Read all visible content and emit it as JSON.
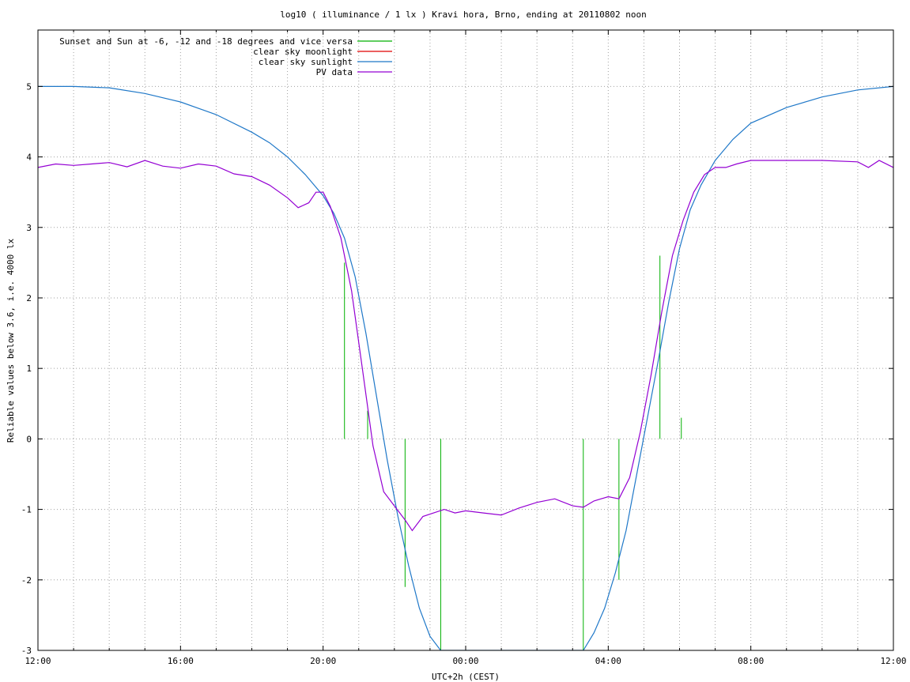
{
  "chart_data": {
    "type": "line",
    "title": "log10 ( illuminance / 1 lx ) Kravi hora, Brno, ending at 20110802 noon",
    "xlabel": "UTC+2h (CEST)",
    "ylabel": "Reliable values below 3.6, i.e. 4000 lx",
    "xlim": [
      0,
      24
    ],
    "ylim": [
      -3,
      5.8
    ],
    "x_ticks": [
      {
        "value": 0,
        "label": "12:00"
      },
      {
        "value": 4,
        "label": "16:00"
      },
      {
        "value": 8,
        "label": "20:00"
      },
      {
        "value": 12,
        "label": "00:00"
      },
      {
        "value": 16,
        "label": "04:00"
      },
      {
        "value": 20,
        "label": "08:00"
      },
      {
        "value": 24,
        "label": "12:00"
      }
    ],
    "y_ticks": [
      {
        "value": -3,
        "label": "-3"
      },
      {
        "value": -2,
        "label": "-2"
      },
      {
        "value": -1,
        "label": "-1"
      },
      {
        "value": 0,
        "label": "0"
      },
      {
        "value": 1,
        "label": "1"
      },
      {
        "value": 2,
        "label": "2"
      },
      {
        "value": 3,
        "label": "3"
      },
      {
        "value": 4,
        "label": "4"
      },
      {
        "value": 5,
        "label": "5"
      }
    ],
    "grid": true,
    "legend_position": "top-left",
    "series": [
      {
        "name": "Sunset and Sun at -6, -12 and -18 degrees and vice versa",
        "color": "#00b000",
        "style": "impulses",
        "x": [
          8.6,
          9.25,
          10.3,
          11.3,
          15.3,
          16.3,
          17.45,
          18.05
        ],
        "y": [
          2.5,
          0.4,
          -2.1,
          -3,
          -3,
          -2.0,
          2.6,
          0.3
        ]
      },
      {
        "name": "clear sky moonlight",
        "color": "#e00000",
        "style": "line",
        "x": [],
        "y": []
      },
      {
        "name": "clear sky sunlight",
        "color": "#1f78c8",
        "style": "line",
        "x": [
          0,
          1,
          2,
          3,
          4,
          5,
          6,
          6.5,
          7,
          7.5,
          8,
          8.3,
          8.6,
          8.9,
          9.2,
          9.5,
          9.8,
          10.1,
          10.4,
          10.7,
          11.0,
          11.3,
          15.3,
          15.6,
          15.9,
          16.2,
          16.5,
          16.8,
          17.1,
          17.4,
          17.7,
          18.0,
          18.3,
          18.6,
          19,
          19.5,
          20,
          21,
          22,
          23,
          24
        ],
        "y": [
          5.0,
          5.0,
          4.98,
          4.9,
          4.78,
          4.6,
          4.35,
          4.2,
          4.0,
          3.75,
          3.45,
          3.2,
          2.85,
          2.3,
          1.5,
          0.6,
          -0.3,
          -1.1,
          -1.8,
          -2.4,
          -2.8,
          -3.0,
          -3.0,
          -2.75,
          -2.4,
          -1.9,
          -1.3,
          -0.5,
          0.3,
          1.1,
          1.95,
          2.7,
          3.25,
          3.6,
          3.95,
          4.25,
          4.48,
          4.7,
          4.85,
          4.95,
          5.0
        ]
      },
      {
        "name": "PV data",
        "color": "#9400d3",
        "style": "line",
        "x": [
          0,
          0.5,
          1,
          1.5,
          2,
          2.5,
          3,
          3.5,
          4,
          4.5,
          5,
          5.5,
          6,
          6.5,
          7,
          7.3,
          7.6,
          7.8,
          8,
          8.2,
          8.5,
          8.8,
          9.1,
          9.4,
          9.7,
          10.0,
          10.3,
          10.5,
          10.8,
          11.1,
          11.4,
          11.7,
          12,
          12.5,
          13,
          13.5,
          14,
          14.5,
          15,
          15.3,
          15.6,
          16,
          16.3,
          16.6,
          16.9,
          17.2,
          17.5,
          17.8,
          18.1,
          18.4,
          18.7,
          19,
          19.3,
          19.6,
          20,
          21,
          22,
          23,
          23.3,
          23.6,
          24
        ],
        "y": [
          3.85,
          3.9,
          3.88,
          3.9,
          3.92,
          3.86,
          3.95,
          3.87,
          3.84,
          3.9,
          3.87,
          3.76,
          3.72,
          3.6,
          3.42,
          3.28,
          3.35,
          3.5,
          3.5,
          3.3,
          2.85,
          2.1,
          1.0,
          -0.1,
          -0.75,
          -0.95,
          -1.15,
          -1.3,
          -1.1,
          -1.05,
          -1.0,
          -1.05,
          -1.02,
          -1.05,
          -1.08,
          -0.98,
          -0.9,
          -0.85,
          -0.95,
          -0.97,
          -0.88,
          -0.82,
          -0.85,
          -0.55,
          0.1,
          0.9,
          1.8,
          2.6,
          3.1,
          3.5,
          3.75,
          3.85,
          3.85,
          3.9,
          3.95,
          3.95,
          3.95,
          3.93,
          3.85,
          3.95,
          3.85
        ]
      }
    ]
  }
}
